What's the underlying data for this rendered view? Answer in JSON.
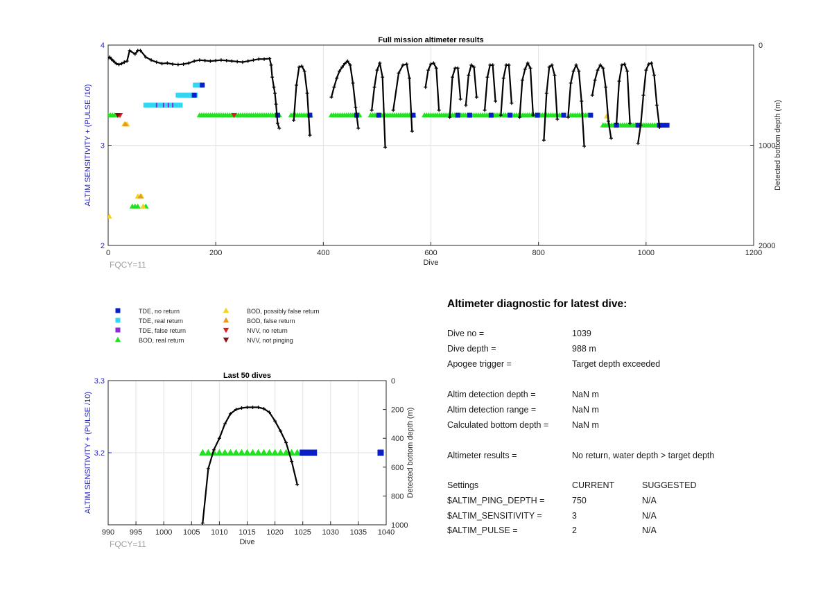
{
  "colors": {
    "tde_no_return": "#0a1ec8",
    "tde_real_return": "#33d6f2",
    "tde_false_return": "#8a2ad0",
    "bod_real_return": "#22e022",
    "bod_possibly_false": "#f2d21a",
    "bod_false": "#e89a1a",
    "nvv_no_return": "#d81e1e",
    "nvv_not_pinging": "#8a1010",
    "depth_line": "#000000",
    "left_axis_text": "#1f1fc8",
    "fqcy_text": "#a0a0a0"
  },
  "chart_data": [
    {
      "type": "scatter",
      "title": "Full mission altimeter results",
      "xlabel": "Dive",
      "ylabel": "ALTIM SENSITIVITY + (PULSE /10)",
      "y2label": "Detected bottom depth (m)",
      "xlim": [
        0,
        1200
      ],
      "ylim": [
        2,
        4
      ],
      "y2lim": [
        0,
        2000
      ],
      "y2_reversed": true,
      "xticks": [
        0,
        200,
        400,
        600,
        800,
        1000,
        1200
      ],
      "yticks": [
        2,
        3,
        4
      ],
      "y2ticks": [
        0,
        1000,
        2000
      ],
      "grid": true,
      "annotation": "FQCY=11",
      "bod_real_return": [
        {
          "x0": 0,
          "x1": 15,
          "y": 3.3
        },
        {
          "x0": 170,
          "x1": 320,
          "y": 3.3
        },
        {
          "x0": 340,
          "x1": 378,
          "y": 3.3
        },
        {
          "x0": 415,
          "x1": 468,
          "y": 3.3
        },
        {
          "x0": 488,
          "x1": 568,
          "y": 3.3
        },
        {
          "x0": 588,
          "x1": 710,
          "y": 3.3
        },
        {
          "x0": 715,
          "x1": 850,
          "y": 3.3
        },
        {
          "x0": 860,
          "x1": 895,
          "y": 3.3
        },
        {
          "x0": 920,
          "x1": 1030,
          "y": 3.2
        }
      ],
      "bod_real_return_points": [
        [
          45,
          2.39
        ],
        [
          50,
          2.39
        ],
        [
          55,
          2.39
        ],
        [
          70,
          2.39
        ]
      ],
      "bod_possibly_false_points": [
        [
          2,
          2.29
        ],
        [
          30,
          3.21
        ],
        [
          35,
          3.21
        ],
        [
          55,
          2.49
        ],
        [
          62,
          2.49
        ],
        [
          65,
          2.39
        ],
        [
          927,
          3.29
        ]
      ],
      "bod_false_points": [
        [
          60,
          2.49
        ],
        [
          32,
          3.21
        ]
      ],
      "nvv_no_return_points": [
        [
          22,
          3.3
        ],
        [
          234,
          3.3
        ]
      ],
      "nvv_not_pinging_points": [
        [
          18,
          3.3
        ]
      ],
      "tde_real_return": [
        {
          "x0": 70,
          "x1": 135,
          "y": 3.4
        },
        {
          "x0": 130,
          "x1": 165,
          "y": 3.5
        },
        {
          "x0": 162,
          "x1": 175,
          "y": 3.6
        }
      ],
      "tde_false_return_points": [
        [
          90,
          3.4
        ],
        [
          103,
          3.4
        ],
        [
          112,
          3.4
        ],
        [
          120,
          3.4
        ],
        [
          172,
          3.6
        ]
      ],
      "tde_no_return_points": [
        [
          160,
          3.5
        ],
        [
          175,
          3.6
        ],
        [
          315,
          3.3
        ],
        [
          375,
          3.3
        ],
        [
          462,
          3.3
        ],
        [
          503,
          3.3
        ],
        [
          567,
          3.3
        ],
        [
          650,
          3.3
        ],
        [
          672,
          3.3
        ],
        [
          712,
          3.3
        ],
        [
          747,
          3.3
        ],
        [
          798,
          3.3
        ],
        [
          847,
          3.3
        ],
        [
          897,
          3.3
        ],
        [
          945,
          3.2
        ],
        [
          985,
          3.2
        ],
        [
          1025,
          3.2
        ],
        [
          1032,
          3.2
        ],
        [
          1039,
          3.2
        ]
      ],
      "depth_segments": [
        {
          "x": [
            0,
            3,
            6,
            10,
            15,
            20,
            25,
            30,
            35,
            40,
            50,
            55,
            60,
            70,
            80,
            90,
            100,
            110,
            120,
            130,
            140,
            150,
            160,
            170,
            180,
            190,
            200,
            210,
            220,
            230,
            240,
            250,
            260,
            270,
            280,
            290,
            300,
            303,
            305,
            308,
            310,
            312,
            315,
            318
          ],
          "y": [
            130,
            120,
            140,
            160,
            185,
            195,
            185,
            170,
            160,
            55,
            90,
            55,
            55,
            120,
            150,
            170,
            185,
            180,
            190,
            195,
            190,
            180,
            160,
            150,
            155,
            160,
            155,
            150,
            155,
            160,
            165,
            170,
            160,
            150,
            140,
            140,
            135,
            200,
            320,
            420,
            480,
            590,
            780,
            830
          ]
        },
        {
          "x": [
            345,
            350,
            355,
            360,
            365,
            370,
            375
          ],
          "y": [
            750,
            400,
            220,
            210,
            260,
            480,
            900
          ]
        },
        {
          "x": [
            415,
            420,
            425,
            430,
            435,
            440,
            445,
            450,
            455,
            460,
            465
          ],
          "y": [
            520,
            420,
            330,
            260,
            220,
            185,
            160,
            200,
            380,
            620,
            830
          ]
        },
        {
          "x": [
            490,
            495,
            500,
            505,
            510,
            515
          ],
          "y": [
            650,
            420,
            250,
            180,
            320,
            1020
          ]
        },
        {
          "x": [
            530,
            540,
            548,
            555,
            560,
            565
          ],
          "y": [
            650,
            280,
            200,
            190,
            330,
            860
          ]
        },
        {
          "x": [
            590,
            595,
            600,
            605,
            610,
            615
          ],
          "y": [
            420,
            250,
            190,
            180,
            230,
            650
          ]
        },
        {
          "x": [
            635,
            640,
            645,
            650,
            655
          ],
          "y": [
            720,
            320,
            230,
            230,
            540
          ]
        },
        {
          "x": [
            665,
            670,
            675,
            680,
            685
          ],
          "y": [
            600,
            300,
            200,
            220,
            520
          ]
        },
        {
          "x": [
            700,
            705,
            710,
            715,
            720
          ],
          "y": [
            650,
            320,
            200,
            200,
            560
          ]
        },
        {
          "x": [
            730,
            735,
            740,
            745,
            750
          ],
          "y": [
            700,
            330,
            200,
            200,
            580
          ]
        },
        {
          "x": [
            765,
            770,
            775,
            780,
            785,
            790
          ],
          "y": [
            720,
            350,
            240,
            180,
            230,
            700
          ]
        },
        {
          "x": [
            810,
            815,
            820,
            825,
            830,
            835
          ],
          "y": [
            950,
            480,
            220,
            200,
            300,
            740
          ]
        },
        {
          "x": [
            855,
            860,
            865,
            870,
            875,
            880,
            885
          ],
          "y": [
            720,
            380,
            260,
            200,
            260,
            560,
            1010
          ]
        },
        {
          "x": [
            900,
            905,
            910,
            915,
            920,
            925,
            930,
            935
          ],
          "y": [
            500,
            350,
            250,
            200,
            230,
            420,
            760,
            930
          ]
        },
        {
          "x": [
            945,
            950,
            955,
            960,
            965,
            970
          ],
          "y": [
            780,
            360,
            200,
            190,
            260,
            780
          ]
        },
        {
          "x": [
            985,
            990,
            995,
            1000,
            1005,
            1010,
            1015,
            1020,
            1025
          ],
          "y": [
            980,
            800,
            500,
            250,
            190,
            180,
            300,
            600,
            820
          ]
        }
      ]
    },
    {
      "type": "scatter",
      "title": "Last 50 dives",
      "xlabel": "Dive",
      "ylabel": "ALTIM SENSITIVITY + (PULSE /10)",
      "y2label": "Detected bottom depth (m)",
      "xlim": [
        990,
        1040
      ],
      "ylim": [
        3.1,
        3.3
      ],
      "y2lim": [
        0,
        1000
      ],
      "y2_reversed": true,
      "xticks": [
        990,
        995,
        1000,
        1005,
        1010,
        1015,
        1020,
        1025,
        1030,
        1035,
        1040
      ],
      "yticks": [
        3.2,
        3.3
      ],
      "y2ticks": [
        0,
        200,
        400,
        600,
        800,
        1000
      ],
      "grid": true,
      "annotation": "FQCY=11",
      "bod_real_return_points": [
        [
          1007,
          3.2
        ],
        [
          1008,
          3.2
        ],
        [
          1009,
          3.2
        ],
        [
          1010,
          3.2
        ],
        [
          1011,
          3.2
        ],
        [
          1012,
          3.2
        ],
        [
          1013,
          3.2
        ],
        [
          1014,
          3.2
        ],
        [
          1015,
          3.2
        ],
        [
          1016,
          3.2
        ],
        [
          1017,
          3.2
        ],
        [
          1018,
          3.2
        ],
        [
          1019,
          3.2
        ],
        [
          1020,
          3.2
        ],
        [
          1021,
          3.2
        ],
        [
          1022,
          3.2
        ],
        [
          1023,
          3.2
        ],
        [
          1024,
          3.2
        ]
      ],
      "tde_no_return_points": [
        [
          1025,
          3.2
        ],
        [
          1026,
          3.2
        ],
        [
          1027,
          3.2
        ],
        [
          1039,
          3.2
        ]
      ],
      "depth_segments": [
        {
          "x": [
            1007,
            1008,
            1009,
            1010,
            1011,
            1012,
            1013,
            1014,
            1015,
            1016,
            1017,
            1018,
            1019,
            1020,
            1021,
            1022,
            1023,
            1024
          ],
          "y": [
            988,
            610,
            480,
            400,
            300,
            230,
            200,
            190,
            185,
            185,
            185,
            195,
            220,
            280,
            350,
            430,
            560,
            720
          ]
        }
      ]
    }
  ],
  "legend": {
    "items": [
      {
        "label": "TDE, no return",
        "marker": "square",
        "color": "#0a1ec8"
      },
      {
        "label": "TDE, real return",
        "marker": "square",
        "color": "#33d6f2"
      },
      {
        "label": "TDE, false return",
        "marker": "square",
        "color": "#8a2ad0"
      },
      {
        "label": "BOD, real return",
        "marker": "triangle-up",
        "color": "#22e022"
      },
      {
        "label": "BOD, possibly false return",
        "marker": "triangle-up",
        "color": "#f2d21a"
      },
      {
        "label": "BOD, false return",
        "marker": "triangle-up",
        "color": "#e89a1a"
      },
      {
        "label": "NVV, no return",
        "marker": "triangle-down",
        "color": "#d81e1e"
      },
      {
        "label": "NVV, not pinging",
        "marker": "triangle-down",
        "color": "#8a1010"
      }
    ]
  },
  "diagnostic": {
    "title": "Altimeter diagnostic for latest dive:",
    "dive_no_label": "Dive no =",
    "dive_no_value": "1039",
    "dive_depth_label": "Dive depth =",
    "dive_depth_value": "988 m",
    "apogee_label": "Apogee trigger =",
    "apogee_value": "Target depth exceeded",
    "detection_depth_label": "Altim detection depth =",
    "detection_depth_value": "NaN m",
    "detection_range_label": "Altim detection range =",
    "detection_range_value": "NaN m",
    "bottom_depth_label": "Calculated bottom depth =",
    "bottom_depth_value": "NaN m",
    "results_label": "Altimeter results =",
    "results_value": "No return, water depth > target depth",
    "settings_label": "Settings",
    "current_label": "CURRENT",
    "suggested_label": "SUGGESTED",
    "ping_depth_label": "$ALTIM_PING_DEPTH =",
    "ping_depth_current": "750",
    "ping_depth_suggested": "N/A",
    "sensitivity_label": "$ALTIM_SENSITIVITY =",
    "sensitivity_current": "3",
    "sensitivity_suggested": "N/A",
    "pulse_label": "$ALTIM_PULSE =",
    "pulse_current": "2",
    "pulse_suggested": "N/A"
  }
}
